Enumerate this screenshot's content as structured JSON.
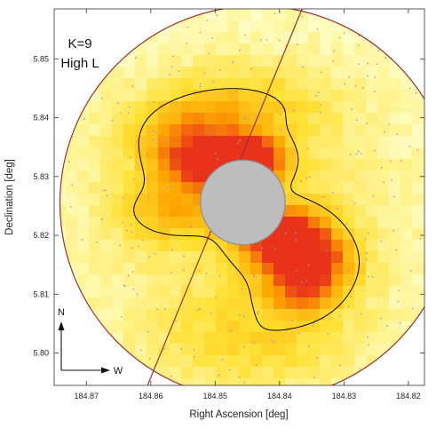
{
  "chart_data": {
    "type": "heatmap",
    "title": "",
    "annotation_lines": [
      "K=9",
      "High L"
    ],
    "xlabel": "Right Ascension [deg]",
    "ylabel": "Declination [deg]",
    "xlim": [
      184.875,
      184.8175
    ],
    "ylim": [
      5.7945,
      5.8585
    ],
    "x_inverted": true,
    "xticks": [
      184.87,
      184.86,
      184.85,
      184.84,
      184.83,
      184.82
    ],
    "yticks": [
      5.8,
      5.81,
      5.82,
      5.83,
      5.84,
      5.85
    ],
    "xtick_labels": [
      "184.87",
      "184.86",
      "184.85",
      "184.84",
      "184.83",
      "184.82"
    ],
    "ytick_labels": [
      "5.80",
      "5.81",
      "5.82",
      "5.83",
      "5.84",
      "5.85"
    ],
    "grid": false,
    "compass": {
      "north_label": "N",
      "west_label": "W"
    },
    "colors": {
      "background": "#ffffff",
      "low": "#ffffcc",
      "mid": "#ffe033",
      "high": "#ffa500",
      "peak": "#e8321a",
      "contour": "#000000",
      "boundary": "#9a2f2f",
      "mask": "#bdbdbd",
      "mask_edge": "#8f8f8f",
      "points": "#9a9ac8"
    },
    "boundary_circle": {
      "center_ra": 184.8435,
      "center_dec": 5.8255,
      "radius_deg": 0.0335
    },
    "boundary_line": {
      "ra1": 184.8605,
      "dec1": 5.7945,
      "ra2": 184.8365,
      "dec2": 5.8585
    },
    "masked_region": {
      "center_ra": 184.8457,
      "center_dec": 5.8256,
      "radius_deg": 0.0072
    },
    "density_components": [
      {
        "ra": 184.8495,
        "dec": 5.8318,
        "sigma_ra": 0.0056,
        "sigma_dec": 0.0033,
        "amp": 0.95
      },
      {
        "ra": 184.844,
        "dec": 5.833,
        "sigma_ra": 0.0035,
        "sigma_dec": 0.0025,
        "amp": 0.6
      },
      {
        "ra": 184.857,
        "dec": 5.824,
        "sigma_ra": 0.006,
        "sigma_dec": 0.0035,
        "amp": 0.4
      },
      {
        "ra": 184.8395,
        "dec": 5.8195,
        "sigma_ra": 0.005,
        "sigma_dec": 0.0038,
        "amp": 1.0
      },
      {
        "ra": 184.834,
        "dec": 5.815,
        "sigma_ra": 0.0045,
        "sigma_dec": 0.004,
        "amp": 0.65
      },
      {
        "ra": 184.837,
        "dec": 5.8105,
        "sigma_ra": 0.004,
        "sigma_dec": 0.003,
        "amp": 0.45
      },
      {
        "ra": 184.8545,
        "dec": 5.837,
        "sigma_ra": 0.0065,
        "sigma_dec": 0.0045,
        "amp": 0.45
      },
      {
        "ra": 184.845,
        "dec": 5.842,
        "sigma_ra": 0.0085,
        "sigma_dec": 0.0045,
        "amp": 0.3
      },
      {
        "ra": 184.8435,
        "dec": 5.802,
        "sigma_ra": 0.012,
        "sigma_dec": 0.006,
        "amp": 0.3
      },
      {
        "ra": 184.845,
        "dec": 5.8255,
        "sigma_ra": 0.018,
        "sigma_dec": 0.018,
        "amp": 0.3
      }
    ],
    "contour_level": 0.45,
    "point_count": 260
  }
}
